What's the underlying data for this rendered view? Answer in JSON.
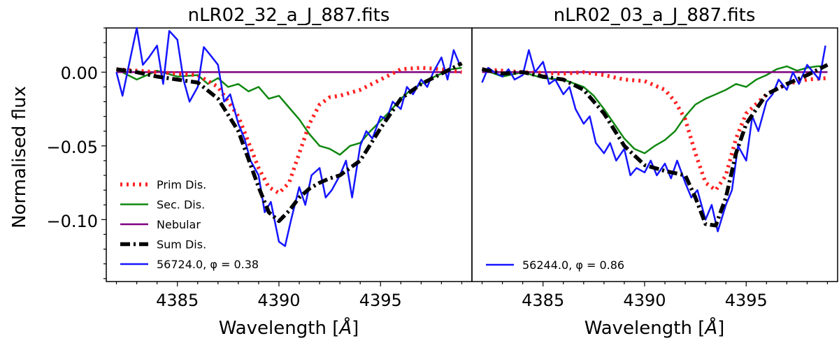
{
  "figure": {
    "ylabel": "Normalised flux",
    "yticks": [
      "0.00",
      "−0.05",
      "−0.10"
    ],
    "xlabel": "Wavelength [",
    "xlabel_unit": "Å",
    "xlabel_close": "]"
  },
  "colors": {
    "prim": "#ff2020",
    "sec": "#118811",
    "nebular": "#800080",
    "sum": "#000000",
    "obs": "#1515ff"
  },
  "chart_data": [
    {
      "type": "line",
      "title": "nLR02_32_a_J_887.fits",
      "xlabel": "Wavelength [Å]",
      "ylabel": "Normalised flux",
      "xlim": [
        4381.5,
        4399.5
      ],
      "ylim": [
        -0.142,
        0.03
      ],
      "xticks": [
        4385,
        4390,
        4395
      ],
      "yticks": [
        0.0,
        -0.05,
        -0.1
      ],
      "legend_position": "lower-left",
      "series": [
        {
          "name": "Prim Dis.",
          "style": "dotted",
          "color": "#ff2020",
          "x": [
            4382,
            4384,
            4386,
            4387,
            4388,
            4389,
            4389.5,
            4390,
            4390.5,
            4391,
            4391.5,
            4392,
            4392.5,
            4393,
            4394,
            4395,
            4396,
            4397,
            4398,
            4399
          ],
          "y": [
            0.002,
            0.0,
            -0.002,
            -0.01,
            -0.03,
            -0.065,
            -0.078,
            -0.082,
            -0.075,
            -0.055,
            -0.035,
            -0.022,
            -0.017,
            -0.016,
            -0.012,
            -0.005,
            0.002,
            0.003,
            0.002,
            0.0
          ]
        },
        {
          "name": "Sec. Dis.",
          "style": "solid",
          "color": "#118811",
          "x": [
            4382,
            4383,
            4384,
            4385,
            4386,
            4386.5,
            4387,
            4387.5,
            4388,
            4388.5,
            4389,
            4389.5,
            4390,
            4390.5,
            4391,
            4391.5,
            4392,
            4392.5,
            4393,
            4393.5,
            4394,
            4394.5,
            4395,
            4395.5,
            4396,
            4396.5,
            4397,
            4397.5,
            4398,
            4398.5,
            4399
          ],
          "y": [
            0.002,
            -0.005,
            0.001,
            -0.003,
            -0.002,
            -0.008,
            -0.004,
            -0.01,
            -0.008,
            -0.013,
            -0.01,
            -0.018,
            -0.016,
            -0.024,
            -0.032,
            -0.042,
            -0.05,
            -0.052,
            -0.056,
            -0.05,
            -0.048,
            -0.04,
            -0.033,
            -0.026,
            -0.018,
            -0.012,
            -0.008,
            -0.004,
            -0.001,
            0.002,
            0.003
          ]
        },
        {
          "name": "Nebular",
          "style": "solid",
          "color": "#800080",
          "x": [
            4382,
            4399
          ],
          "y": [
            0.0,
            0.0
          ]
        },
        {
          "name": "Sum Dis.",
          "style": "dashdot",
          "color": "#000000",
          "x": [
            4382,
            4383,
            4384,
            4385,
            4386,
            4387,
            4388,
            4389,
            4389.5,
            4390,
            4390.5,
            4391,
            4391.5,
            4392,
            4392.5,
            4393,
            4394,
            4395,
            4396,
            4397,
            4398,
            4399
          ],
          "y": [
            0.002,
            0.0,
            -0.003,
            -0.005,
            -0.007,
            -0.018,
            -0.04,
            -0.078,
            -0.095,
            -0.101,
            -0.094,
            -0.085,
            -0.079,
            -0.075,
            -0.072,
            -0.07,
            -0.06,
            -0.038,
            -0.018,
            -0.008,
            -0.001,
            0.006
          ]
        },
        {
          "name": "56724.0, φ = 0.38",
          "style": "solid",
          "color": "#1515ff",
          "x": [
            4382,
            4382.3,
            4382.6,
            4383,
            4383.3,
            4383.6,
            4384,
            4384.3,
            4384.6,
            4385,
            4385.3,
            4385.6,
            4386,
            4386.3,
            4386.6,
            4387,
            4387.3,
            4387.6,
            4388,
            4388.3,
            4388.6,
            4389,
            4389.3,
            4389.6,
            4390,
            4390.3,
            4390.6,
            4391,
            4391.3,
            4391.6,
            4392,
            4392.3,
            4392.6,
            4393,
            4393.3,
            4393.6,
            4394,
            4394.3,
            4394.6,
            4395,
            4395.3,
            4395.6,
            4396,
            4396.3,
            4396.6,
            4397,
            4397.3,
            4397.6,
            4398,
            4398.3,
            4398.6,
            4398.9
          ],
          "y": [
            0.0,
            -0.016,
            0.004,
            0.03,
            0.005,
            0.01,
            0.018,
            -0.008,
            0.028,
            0.022,
            -0.005,
            -0.02,
            -0.01,
            0.017,
            0.012,
            0.005,
            -0.02,
            -0.015,
            -0.035,
            -0.045,
            -0.06,
            -0.07,
            -0.095,
            -0.088,
            -0.115,
            -0.118,
            -0.1,
            -0.078,
            -0.09,
            -0.07,
            -0.065,
            -0.085,
            -0.08,
            -0.07,
            -0.06,
            -0.085,
            -0.05,
            -0.04,
            -0.045,
            -0.03,
            -0.032,
            -0.02,
            -0.025,
            -0.01,
            -0.015,
            -0.005,
            -0.01,
            0.0,
            0.01,
            -0.005,
            0.015,
            0.005
          ]
        }
      ]
    },
    {
      "type": "line",
      "title": "nLR02_03_a_J_887.fits",
      "xlabel": "Wavelength [Å]",
      "xlim": [
        4381.5,
        4399.5
      ],
      "ylim": [
        -0.142,
        0.03
      ],
      "xticks": [
        4385,
        4390,
        4395
      ],
      "legend_position": "lower-left",
      "series": [
        {
          "name": "Prim Dis.",
          "style": "dotted",
          "color": "#ff2020",
          "x": [
            4382,
            4384,
            4386,
            4387,
            4388,
            4389,
            4390,
            4391,
            4391.5,
            4392,
            4392.5,
            4393,
            4393.5,
            4394,
            4394.5,
            4395,
            4396,
            4397,
            4398,
            4399
          ],
          "y": [
            0.002,
            0.0,
            -0.001,
            0.0,
            -0.002,
            -0.005,
            -0.006,
            -0.012,
            -0.02,
            -0.032,
            -0.055,
            -0.075,
            -0.08,
            -0.07,
            -0.045,
            -0.028,
            -0.015,
            -0.008,
            -0.005,
            -0.004
          ]
        },
        {
          "name": "Sec. Dis.",
          "style": "solid",
          "color": "#118811",
          "x": [
            4382,
            4383,
            4384,
            4385,
            4386,
            4387,
            4387.5,
            4388,
            4388.5,
            4389,
            4389.5,
            4390,
            4390.5,
            4391,
            4391.5,
            4392,
            4392.5,
            4393,
            4393.5,
            4394,
            4394.5,
            4395,
            4395.5,
            4396,
            4396.5,
            4397,
            4397.5,
            4398,
            4398.5,
            4399
          ],
          "y": [
            0.002,
            -0.003,
            0.0,
            -0.004,
            -0.005,
            -0.01,
            -0.016,
            -0.025,
            -0.035,
            -0.045,
            -0.052,
            -0.055,
            -0.05,
            -0.046,
            -0.04,
            -0.03,
            -0.022,
            -0.018,
            -0.015,
            -0.012,
            -0.008,
            -0.01,
            -0.005,
            -0.002,
            0.002,
            0.004,
            0.001,
            0.003,
            0.004,
            0.004
          ]
        },
        {
          "name": "Nebular",
          "style": "solid",
          "color": "#800080",
          "x": [
            4382,
            4399
          ],
          "y": [
            0.0,
            0.0
          ]
        },
        {
          "name": "Sum Dis.",
          "style": "dashdot",
          "color": "#000000",
          "x": [
            4382,
            4383,
            4384,
            4385,
            4386,
            4387,
            4388,
            4389,
            4390,
            4391,
            4392,
            4392.5,
            4393,
            4393.5,
            4394,
            4394.5,
            4395,
            4396,
            4397,
            4398,
            4399
          ],
          "y": [
            0.002,
            -0.001,
            0.0,
            -0.003,
            -0.005,
            -0.012,
            -0.028,
            -0.05,
            -0.063,
            -0.067,
            -0.07,
            -0.085,
            -0.103,
            -0.104,
            -0.085,
            -0.055,
            -0.035,
            -0.015,
            -0.008,
            -0.002,
            0.005
          ]
        },
        {
          "name": "56244.0, φ = 0.86",
          "style": "solid",
          "color": "#1515ff",
          "x": [
            4382,
            4382.3,
            4382.6,
            4383,
            4383.3,
            4383.6,
            4384,
            4384.3,
            4384.6,
            4385,
            4385.3,
            4385.6,
            4386,
            4386.3,
            4386.6,
            4387,
            4387.3,
            4387.6,
            4388,
            4388.3,
            4388.6,
            4389,
            4389.3,
            4389.6,
            4390,
            4390.3,
            4390.6,
            4391,
            4391.3,
            4391.6,
            4392,
            4392.3,
            4392.6,
            4393,
            4393.3,
            4393.6,
            4394,
            4394.3,
            4394.6,
            4395,
            4395.3,
            4395.6,
            4396,
            4396.3,
            4396.6,
            4397,
            4397.3,
            4397.6,
            4398,
            4398.3,
            4398.6,
            4398.9
          ],
          "y": [
            -0.007,
            0.003,
            0.0,
            -0.003,
            0.002,
            -0.005,
            -0.002,
            0.015,
            0.0,
            0.007,
            -0.008,
            -0.005,
            -0.015,
            -0.01,
            -0.025,
            -0.035,
            -0.03,
            -0.048,
            -0.055,
            -0.048,
            -0.06,
            -0.052,
            -0.07,
            -0.065,
            -0.068,
            -0.06,
            -0.07,
            -0.062,
            -0.072,
            -0.06,
            -0.075,
            -0.085,
            -0.08,
            -0.1,
            -0.09,
            -0.108,
            -0.09,
            -0.08,
            -0.05,
            -0.06,
            -0.03,
            -0.04,
            -0.02,
            -0.015,
            -0.005,
            -0.012,
            0.0,
            -0.008,
            0.005,
            0.0,
            -0.005,
            0.018
          ]
        }
      ]
    }
  ]
}
